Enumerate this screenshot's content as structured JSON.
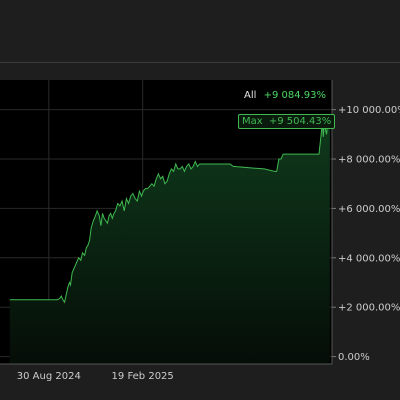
{
  "legend": {
    "label": "All",
    "value": "+9 084.93%"
  },
  "max_badge": {
    "label": "Max",
    "value": "+9 504.43%"
  },
  "colors": {
    "line": "#3fb950",
    "fill": "#0d2a16",
    "plot_bg": "#000000",
    "grid": "#2a2a2a",
    "text": "#cccccc"
  },
  "chart_data": {
    "type": "area",
    "title": "",
    "xlabel": "",
    "ylabel": "",
    "x_ticks": [
      "30 Aug 2024",
      "19 Feb 2025"
    ],
    "y_ticks": [
      "0.00%",
      "+2 000.00%",
      "+4 000.00%",
      "+6 000.00%",
      "+8 000.00%",
      "+10 000.00%"
    ],
    "ylim": [
      -300,
      11200
    ],
    "grid": true,
    "legend_position": "top-right",
    "series": [
      {
        "x": [
          "2024-06-19",
          "2024-07-10",
          "2024-07-20",
          "2024-08-01",
          "2024-08-10",
          "2024-08-20",
          "2024-09-05",
          "2024-09-12",
          "2024-09-15",
          "2024-09-19",
          "2024-09-22",
          "2024-09-25",
          "2024-09-28",
          "2024-10-01",
          "2024-10-04",
          "2024-10-07",
          "2024-10-09",
          "2024-10-12",
          "2024-10-16",
          "2024-10-20",
          "2024-10-24",
          "2024-10-28",
          "2024-10-31",
          "2024-11-04",
          "2024-11-07",
          "2024-11-10",
          "2024-11-13",
          "2024-11-16",
          "2024-11-20",
          "2024-11-24",
          "2024-11-27",
          "2024-12-01",
          "2024-12-04",
          "2024-12-07",
          "2024-12-10",
          "2024-12-13",
          "2024-12-16",
          "2024-12-19",
          "2024-12-22",
          "2024-12-25",
          "2024-12-28",
          "2024-12-31",
          "2025-01-04",
          "2025-01-08",
          "2025-01-12",
          "2025-01-16",
          "2025-01-20",
          "2025-01-24",
          "2025-01-28",
          "2025-02-01",
          "2025-02-05",
          "2025-02-09",
          "2025-02-13",
          "2025-02-17",
          "2025-02-20",
          "2025-02-24",
          "2025-02-28",
          "2025-03-04",
          "2025-03-08",
          "2025-03-12",
          "2025-03-16",
          "2025-03-20",
          "2025-03-24",
          "2025-03-28",
          "2025-04-01",
          "2025-04-05",
          "2025-04-09",
          "2025-04-13",
          "2025-04-17",
          "2025-04-21",
          "2025-04-25",
          "2025-04-29",
          "2025-05-03",
          "2025-05-07",
          "2025-05-11",
          "2025-05-15",
          "2025-05-19",
          "2025-05-23",
          "2025-05-27",
          "2025-05-31",
          "2025-06-04",
          "2025-06-08",
          "2025-06-12",
          "2025-06-16",
          "2025-06-20",
          "2025-06-24",
          "2025-06-28",
          "2025-07-02",
          "2025-07-06",
          "2025-07-10",
          "2025-07-14",
          "2025-07-18",
          "2025-07-22",
          "2025-07-26",
          "2025-07-30",
          "2025-08-05",
          "2025-09-01",
          "2025-10-01",
          "2025-10-20",
          "2025-10-24",
          "2025-10-28",
          "2025-11-01",
          "2025-11-05",
          "2025-11-12",
          "2025-11-30",
          "2025-12-20",
          "2026-01-10",
          "2026-01-14",
          "2026-01-16",
          "2026-01-18",
          "2026-01-20",
          "2026-01-22",
          "2026-01-24",
          "2026-01-26",
          "2026-01-28",
          "2026-01-30"
        ],
        "values": [
          2300,
          2300,
          2300,
          2300,
          2300,
          2300,
          2300,
          2300,
          2300,
          2350,
          2450,
          2300,
          2200,
          2500,
          2800,
          3000,
          2900,
          3400,
          3600,
          3800,
          4000,
          3900,
          4200,
          4100,
          4400,
          4500,
          4700,
          5200,
          5500,
          5700,
          5900,
          5700,
          5300,
          5800,
          5600,
          5500,
          5400,
          5700,
          5800,
          5600,
          5800,
          5900,
          6200,
          6100,
          6300,
          5900,
          6400,
          6200,
          6500,
          6600,
          6400,
          6300,
          6700,
          6500,
          6700,
          6800,
          6800,
          6900,
          7000,
          6900,
          7200,
          7400,
          7200,
          7300,
          7000,
          7100,
          7400,
          7600,
          7500,
          7800,
          7600,
          7600,
          7700,
          7500,
          7700,
          7800,
          7600,
          7700,
          7900,
          7700,
          7800,
          7800,
          7800,
          7800,
          7800,
          7800,
          7800,
          7800,
          7800,
          7800,
          7800,
          7800,
          7800,
          7800,
          7800,
          7700,
          7650,
          7600,
          7500,
          7500,
          8000,
          8000,
          8200,
          8200,
          8200,
          8200,
          8200,
          9000,
          9500,
          8900,
          9600,
          9200,
          9000,
          9500,
          9400,
          9300
        ]
      }
    ]
  }
}
